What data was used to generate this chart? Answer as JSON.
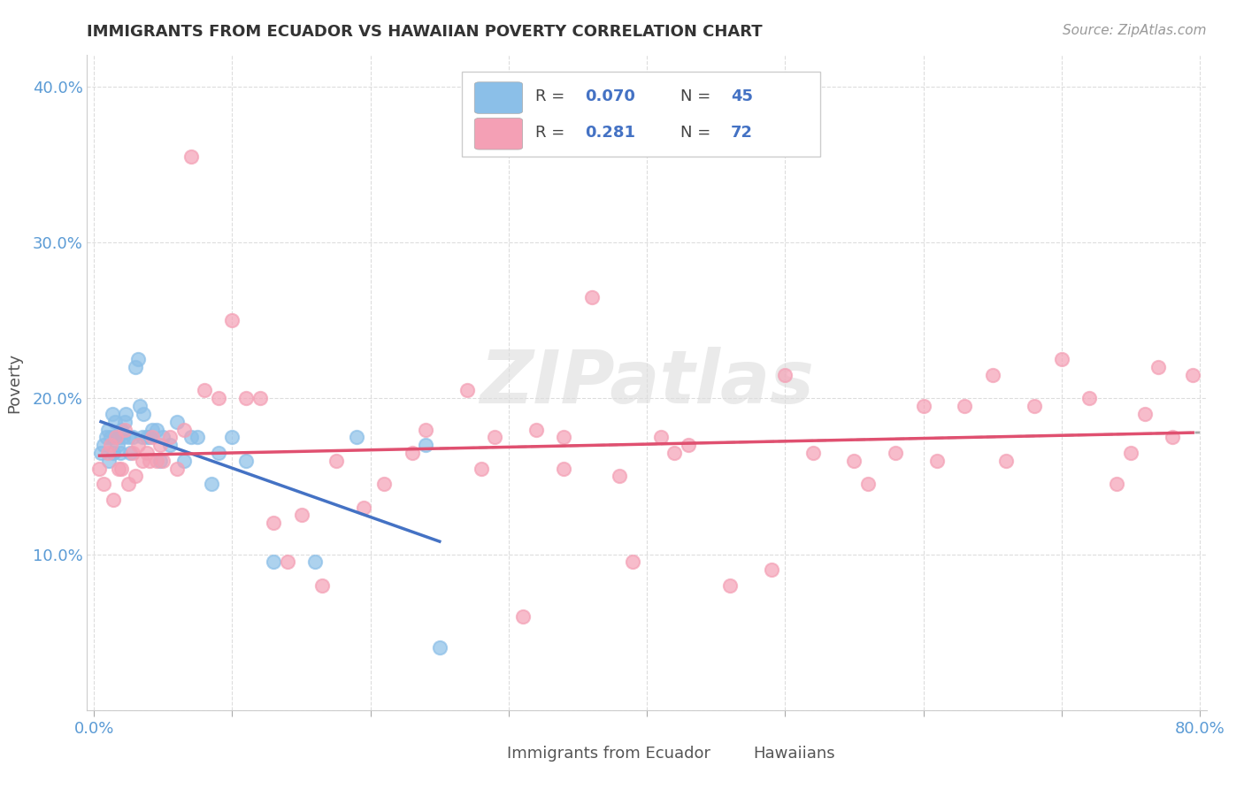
{
  "title": "IMMIGRANTS FROM ECUADOR VS HAWAIIAN POVERTY CORRELATION CHART",
  "source_text": "Source: ZipAtlas.com",
  "ylabel": "Poverty",
  "xlim": [
    0,
    0.8
  ],
  "ylim": [
    0,
    0.42
  ],
  "blue_color": "#8BBFE8",
  "pink_color": "#F4A0B5",
  "trend_blue_color": "#4472C4",
  "trend_pink_color": "#E05070",
  "trend_gray_color": "#AAAAAA",
  "watermark": "ZIPatlas",
  "blue_scatter_x": [
    0.005,
    0.007,
    0.009,
    0.01,
    0.011,
    0.012,
    0.013,
    0.014,
    0.015,
    0.016,
    0.017,
    0.018,
    0.019,
    0.02,
    0.021,
    0.022,
    0.023,
    0.025,
    0.026,
    0.028,
    0.03,
    0.032,
    0.033,
    0.035,
    0.036,
    0.038,
    0.04,
    0.042,
    0.045,
    0.048,
    0.05,
    0.055,
    0.06,
    0.065,
    0.07,
    0.075,
    0.085,
    0.09,
    0.1,
    0.11,
    0.13,
    0.16,
    0.19,
    0.24,
    0.25
  ],
  "blue_scatter_y": [
    0.165,
    0.17,
    0.175,
    0.18,
    0.16,
    0.175,
    0.19,
    0.165,
    0.185,
    0.175,
    0.17,
    0.175,
    0.165,
    0.18,
    0.175,
    0.185,
    0.19,
    0.175,
    0.165,
    0.175,
    0.22,
    0.225,
    0.195,
    0.175,
    0.19,
    0.175,
    0.175,
    0.18,
    0.18,
    0.16,
    0.175,
    0.17,
    0.185,
    0.16,
    0.175,
    0.175,
    0.145,
    0.165,
    0.175,
    0.16,
    0.095,
    0.095,
    0.175,
    0.17,
    0.04
  ],
  "pink_scatter_x": [
    0.004,
    0.007,
    0.01,
    0.012,
    0.014,
    0.016,
    0.018,
    0.02,
    0.022,
    0.025,
    0.028,
    0.03,
    0.032,
    0.035,
    0.038,
    0.04,
    0.042,
    0.045,
    0.048,
    0.05,
    0.055,
    0.06,
    0.065,
    0.07,
    0.08,
    0.09,
    0.1,
    0.11,
    0.12,
    0.13,
    0.14,
    0.15,
    0.165,
    0.175,
    0.195,
    0.21,
    0.23,
    0.24,
    0.27,
    0.29,
    0.31,
    0.32,
    0.34,
    0.36,
    0.39,
    0.41,
    0.43,
    0.46,
    0.49,
    0.52,
    0.55,
    0.58,
    0.6,
    0.63,
    0.65,
    0.68,
    0.7,
    0.72,
    0.74,
    0.76,
    0.78,
    0.795,
    0.34,
    0.38,
    0.28,
    0.42,
    0.5,
    0.56,
    0.61,
    0.66,
    0.75,
    0.77
  ],
  "pink_scatter_y": [
    0.155,
    0.145,
    0.165,
    0.17,
    0.135,
    0.175,
    0.155,
    0.155,
    0.18,
    0.145,
    0.165,
    0.15,
    0.17,
    0.16,
    0.165,
    0.16,
    0.175,
    0.16,
    0.17,
    0.16,
    0.175,
    0.155,
    0.18,
    0.355,
    0.205,
    0.2,
    0.25,
    0.2,
    0.2,
    0.12,
    0.095,
    0.125,
    0.08,
    0.16,
    0.13,
    0.145,
    0.165,
    0.18,
    0.205,
    0.175,
    0.06,
    0.18,
    0.155,
    0.265,
    0.095,
    0.175,
    0.17,
    0.08,
    0.09,
    0.165,
    0.16,
    0.165,
    0.195,
    0.195,
    0.215,
    0.195,
    0.225,
    0.2,
    0.145,
    0.19,
    0.175,
    0.215,
    0.175,
    0.15,
    0.155,
    0.165,
    0.215,
    0.145,
    0.16,
    0.16,
    0.165,
    0.22
  ]
}
